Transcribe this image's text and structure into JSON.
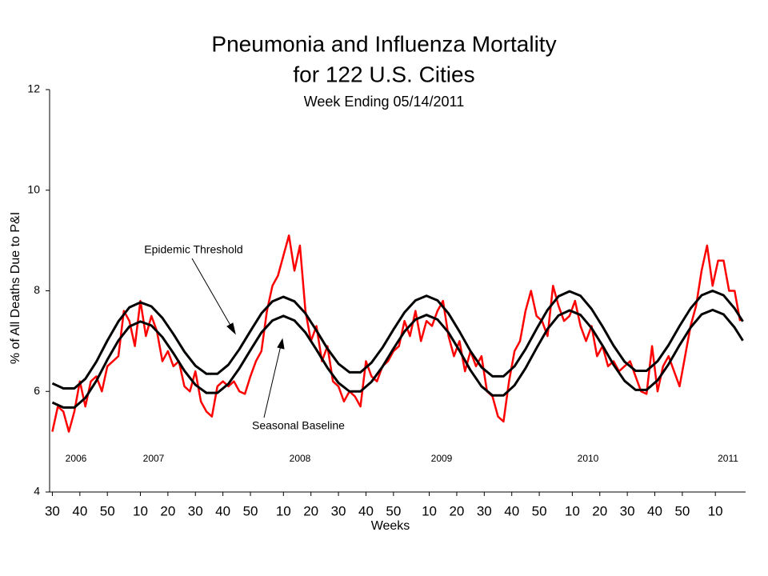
{
  "chart_data": {
    "type": "line",
    "title": [
      "Pneumonia and Influenza Mortality",
      "for 122 U.S. Cities"
    ],
    "subtitle": "Week Ending  05/14/2011",
    "ylabel": "% of All Deaths Due to P&I",
    "xlabel": "Weeks",
    "annotations": [
      "Epidemic Threshold",
      "Seasonal Baseline"
    ],
    "year_labels": [
      "2006",
      "2007",
      "2008",
      "2009",
      "2010",
      "2011"
    ],
    "xlim": [
      -1,
      252
    ],
    "ylim": [
      4,
      12
    ],
    "yticks": [
      4,
      6,
      8,
      10,
      12
    ],
    "xticks": [
      {
        "value": 0,
        "label": "30"
      },
      {
        "value": 10,
        "label": "40"
      },
      {
        "value": 20,
        "label": "50"
      },
      {
        "value": 32,
        "label": "10"
      },
      {
        "value": 42,
        "label": "20"
      },
      {
        "value": 52,
        "label": "30"
      },
      {
        "value": 62,
        "label": "40"
      },
      {
        "value": 72,
        "label": "50"
      },
      {
        "value": 84,
        "label": "10"
      },
      {
        "value": 94,
        "label": "20"
      },
      {
        "value": 104,
        "label": "30"
      },
      {
        "value": 114,
        "label": "40"
      },
      {
        "value": 124,
        "label": "50"
      },
      {
        "value": 137,
        "label": "10"
      },
      {
        "value": 147,
        "label": "20"
      },
      {
        "value": 157,
        "label": "30"
      },
      {
        "value": 167,
        "label": "40"
      },
      {
        "value": 177,
        "label": "50"
      },
      {
        "value": 189,
        "label": "10"
      },
      {
        "value": 199,
        "label": "20"
      },
      {
        "value": 209,
        "label": "30"
      },
      {
        "value": 219,
        "label": "40"
      },
      {
        "value": 229,
        "label": "50"
      },
      {
        "value": 241,
        "label": "10"
      }
    ],
    "grid": false,
    "series": [
      {
        "color": "#ff0000",
        "width": 2.5,
        "x": [
          0,
          2,
          4,
          6,
          8,
          10,
          12,
          14,
          16,
          18,
          20,
          22,
          24,
          26,
          28,
          30,
          32,
          34,
          36,
          38,
          40,
          42,
          44,
          46,
          48,
          50,
          52,
          54,
          56,
          58,
          60,
          62,
          64,
          66,
          68,
          70,
          72,
          74,
          76,
          78,
          80,
          82,
          84,
          86,
          88,
          90,
          92,
          94,
          96,
          98,
          100,
          102,
          104,
          106,
          108,
          110,
          112,
          114,
          116,
          118,
          120,
          122,
          124,
          126,
          128,
          130,
          132,
          134,
          136,
          138,
          140,
          142,
          144,
          146,
          148,
          150,
          152,
          154,
          156,
          158,
          160,
          162,
          164,
          166,
          168,
          170,
          172,
          174,
          176,
          178,
          180,
          182,
          184,
          186,
          188,
          190,
          192,
          194,
          196,
          198,
          200,
          202,
          204,
          206,
          208,
          210,
          212,
          214,
          216,
          218,
          220,
          222,
          224,
          226,
          228,
          230,
          232,
          234,
          236,
          238,
          240,
          242,
          244,
          246,
          248,
          250
        ],
        "values": [
          5.2,
          5.7,
          5.6,
          5.2,
          5.6,
          6.2,
          5.7,
          6.2,
          6.3,
          6.0,
          6.5,
          6.6,
          6.7,
          7.6,
          7.4,
          6.9,
          7.8,
          7.1,
          7.5,
          7.2,
          6.6,
          6.8,
          6.5,
          6.6,
          6.1,
          6.0,
          6.4,
          5.8,
          5.6,
          5.5,
          6.1,
          6.2,
          6.1,
          6.2,
          6.0,
          5.95,
          6.3,
          6.6,
          6.8,
          7.6,
          8.1,
          8.3,
          8.7,
          9.1,
          8.4,
          8.9,
          7.6,
          7.0,
          7.3,
          6.6,
          6.9,
          6.2,
          6.1,
          5.8,
          6.0,
          5.9,
          5.7,
          6.6,
          6.3,
          6.2,
          6.5,
          6.6,
          6.8,
          6.9,
          7.4,
          7.1,
          7.6,
          7.0,
          7.4,
          7.3,
          7.6,
          7.8,
          7.1,
          6.7,
          7.0,
          6.4,
          6.8,
          6.5,
          6.7,
          6.0,
          5.9,
          5.5,
          5.4,
          6.2,
          6.8,
          7.0,
          7.6,
          8.0,
          7.5,
          7.4,
          7.1,
          8.1,
          7.7,
          7.4,
          7.5,
          7.8,
          7.3,
          7.0,
          7.3,
          6.7,
          6.9,
          6.5,
          6.6,
          6.4,
          6.5,
          6.6,
          6.3,
          6.0,
          5.95,
          6.9,
          6.0,
          6.5,
          6.7,
          6.4,
          6.1,
          6.7,
          7.3,
          7.7,
          8.4,
          8.9,
          8.1,
          8.6,
          8.6,
          8.0,
          8.0,
          7.4
        ]
      },
      {
        "color": "#000000",
        "width": 3,
        "x": [
          0,
          4,
          8,
          12,
          16,
          20,
          24,
          28,
          32,
          36,
          40,
          44,
          48,
          52,
          56,
          60,
          64,
          68,
          72,
          76,
          80,
          84,
          88,
          92,
          96,
          100,
          104,
          108,
          112,
          116,
          120,
          124,
          128,
          132,
          136,
          140,
          144,
          148,
          152,
          156,
          160,
          164,
          168,
          172,
          176,
          180,
          184,
          188,
          192,
          196,
          200,
          204,
          208,
          212,
          216,
          220,
          224,
          228,
          232,
          236,
          240,
          244,
          248,
          251
        ],
        "values": [
          6.16,
          6.06,
          6.06,
          6.25,
          6.59,
          7.01,
          7.39,
          7.67,
          7.77,
          7.69,
          7.46,
          7.14,
          6.79,
          6.51,
          6.35,
          6.35,
          6.53,
          6.84,
          7.2,
          7.55,
          7.79,
          7.88,
          7.79,
          7.55,
          7.21,
          6.85,
          6.55,
          6.38,
          6.38,
          6.57,
          6.87,
          7.23,
          7.57,
          7.81,
          7.9,
          7.81,
          7.55,
          7.19,
          6.8,
          6.48,
          6.3,
          6.3,
          6.5,
          6.84,
          7.24,
          7.62,
          7.89,
          7.99,
          7.9,
          7.64,
          7.29,
          6.91,
          6.59,
          6.41,
          6.41,
          6.6,
          6.92,
          7.3,
          7.65,
          7.91,
          8.0,
          7.91,
          7.65,
          7.39
        ]
      },
      {
        "color": "#000000",
        "width": 3,
        "x": [
          0,
          4,
          8,
          12,
          16,
          20,
          24,
          28,
          32,
          36,
          40,
          44,
          48,
          52,
          56,
          60,
          64,
          68,
          72,
          76,
          80,
          84,
          88,
          92,
          96,
          100,
          104,
          108,
          112,
          116,
          120,
          124,
          128,
          132,
          136,
          140,
          144,
          148,
          152,
          156,
          160,
          164,
          168,
          172,
          176,
          180,
          184,
          188,
          192,
          196,
          200,
          204,
          208,
          212,
          216,
          220,
          224,
          228,
          232,
          236,
          240,
          244,
          248,
          251
        ],
        "values": [
          5.78,
          5.68,
          5.68,
          5.87,
          6.21,
          6.63,
          7.01,
          7.29,
          7.39,
          7.31,
          7.08,
          6.76,
          6.41,
          6.13,
          5.97,
          5.97,
          6.15,
          6.46,
          6.82,
          7.17,
          7.41,
          7.5,
          7.41,
          7.17,
          6.83,
          6.47,
          6.17,
          6.0,
          6.0,
          6.19,
          6.49,
          6.85,
          7.19,
          7.43,
          7.52,
          7.43,
          7.17,
          6.81,
          6.42,
          6.1,
          5.92,
          5.92,
          6.12,
          6.46,
          6.86,
          7.24,
          7.51,
          7.61,
          7.52,
          7.26,
          6.91,
          6.53,
          6.21,
          6.03,
          6.03,
          6.22,
          6.54,
          6.92,
          7.27,
          7.53,
          7.62,
          7.53,
          7.27,
          7.01
        ]
      }
    ]
  }
}
